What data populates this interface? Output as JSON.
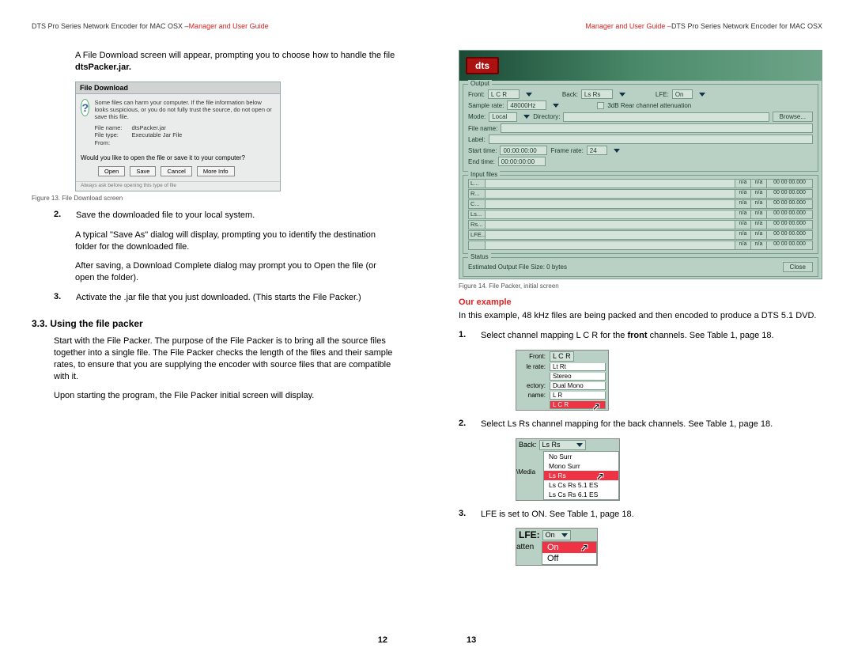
{
  "headers": {
    "left_black": "DTS Pro Series Network Encoder for MAC OSX – ",
    "left_red": "Manager and User Guide",
    "right_red": "Manager and User Guide – ",
    "right_black": "DTS Pro Series Network Encoder for MAC OSX"
  },
  "left_page": {
    "intro_a": "A File Download screen will appear, prompting you to choose how to handle the file ",
    "intro_bold": "dtsPacker.jar.",
    "fig13": {
      "title": "File Download",
      "warn": "Some files can harm your computer. If the file information below looks suspicious, or you do not fully trust the source, do not open or save this file.",
      "fn_lbl": "File name:",
      "fn_val": "dtsPacker.jar",
      "ft_lbl": "File type:",
      "ft_val": "Executable Jar File",
      "from_lbl": "From:",
      "question": "Would you like to open the file or save it to your computer?",
      "btns": [
        "Open",
        "Save",
        "Cancel",
        "More Info"
      ],
      "foot": "Always ask before opening this type of file"
    },
    "fig13_cap": "Figure 13. File Download screen",
    "item2": {
      "n": "2.",
      "t": "Save the downloaded file to your local system."
    },
    "item2_p2": "A typical \"Save As\" dialog will display, prompting you to identify the destination folder for the downloaded file.",
    "item2_p3": "After saving, a Download Complete dialog may prompt you to Open the file (or open the folder).",
    "item3": {
      "n": "3.",
      "t": "Activate the .jar file that you just downloaded. (This starts the File Packer.)"
    },
    "section": "3.3.  Using the file packer",
    "sec_p1": "Start with the File Packer. The purpose of the File Packer is to bring all the source files together into a single file. The File Packer checks the length of the files and their sample rates, to ensure that you are supplying the encoder with source files that are compatible with it.",
    "sec_p2": "Upon starting the program, the File Packer initial screen will display.",
    "page_num": "12"
  },
  "right_page": {
    "fig14": {
      "logo": "dts",
      "output_legend": "Output",
      "front_lbl": "Front:",
      "front_val": "L C R",
      "back_lbl": "Back:",
      "back_val": "Ls Rs",
      "lfe_lbl": "LFE:",
      "lfe_val": "On",
      "sr_lbl": "Sample rate:",
      "sr_val": "48000Hz",
      "atten": "3dB Rear channel attenuation",
      "mode_lbl": "Mode:",
      "mode_val": "Local",
      "dir_lbl": "Directory:",
      "browse": "Browse...",
      "fname_lbl": "File name:",
      "label_lbl": "Label:",
      "st_lbl": "Start time:",
      "st_val": "00:00:00:00",
      "fr_lbl": "Frame rate:",
      "fr_val": "24",
      "et_lbl": "End time:",
      "et_val": "00:00:00:00",
      "input_legend": "Input files",
      "channels": [
        "L...",
        "R...",
        "C...",
        "Ls...",
        "Rs...",
        "LFE...",
        ""
      ],
      "na": "n/a",
      "tc": "00 00 00.000",
      "status_legend": "Status",
      "est": "Estimated Output File Size: 0 bytes",
      "close": "Close"
    },
    "fig14_cap": "Figure 14. File Packer, initial screen",
    "our_example": "Our example",
    "ex_intro": "In this example, 48 kHz files are being packed and then encoded to produce a DTS 5.1 DVD.",
    "s1": {
      "n": "1.",
      "a": "Select channel mapping L C R for the ",
      "b": "front",
      "c": " channels. See Table 1, page 18."
    },
    "front_inset": {
      "rows": [
        [
          "Front:",
          "L C R"
        ],
        [
          "le rate:",
          "Lt Rt"
        ],
        [
          "",
          "Stereo"
        ],
        [
          "ectory:",
          "Dual Mono"
        ],
        [
          "name:",
          "L R"
        ]
      ],
      "sel": "L C R"
    },
    "s2": {
      "n": "2.",
      "t": "Select Ls Rs channel mapping for the back channels. See Table 1, page 18."
    },
    "back_inset": {
      "label": "Back:",
      "val": "Ls Rs",
      "opts": [
        "No Surr",
        "Mono Surr",
        "Ls Rs",
        "Ls Cs Rs 5.1 ES",
        "Ls Cs Rs 6.1 ES"
      ],
      "sel_index": 2,
      "left_txt": "\\Media"
    },
    "s3": {
      "n": "3.",
      "t": "LFE is set to ON. See Table 1, page 18."
    },
    "lfe_inset": {
      "lbl": "LFE:",
      "val": "On",
      "opts": [
        "On",
        "Off"
      ],
      "sel_index": 0,
      "left": "atten"
    },
    "page_num": "13"
  },
  "colors": {
    "red": "#d22",
    "panel": "#b9d0c4",
    "panel_border": "#7a9a8c",
    "field": "#d5e4db",
    "sel": "#e34"
  }
}
